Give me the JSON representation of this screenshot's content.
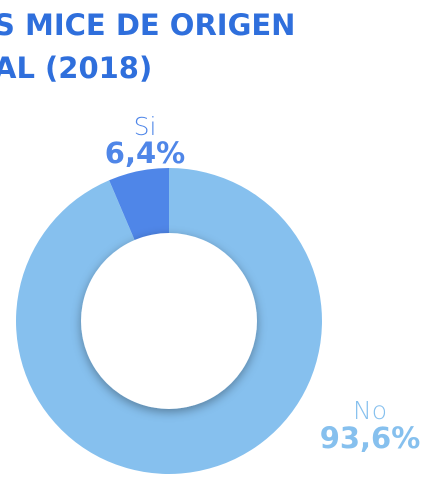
{
  "chart_data": {
    "type": "donut",
    "title": [
      "S MICE DE ORIGEN",
      "AL (2018)"
    ],
    "categories": [
      "Si",
      "No"
    ],
    "values": [
      6.4,
      93.6
    ],
    "value_labels": [
      "6,4%",
      "93,6%"
    ],
    "colors": [
      "#4f86e8",
      "#86c0ee"
    ]
  }
}
